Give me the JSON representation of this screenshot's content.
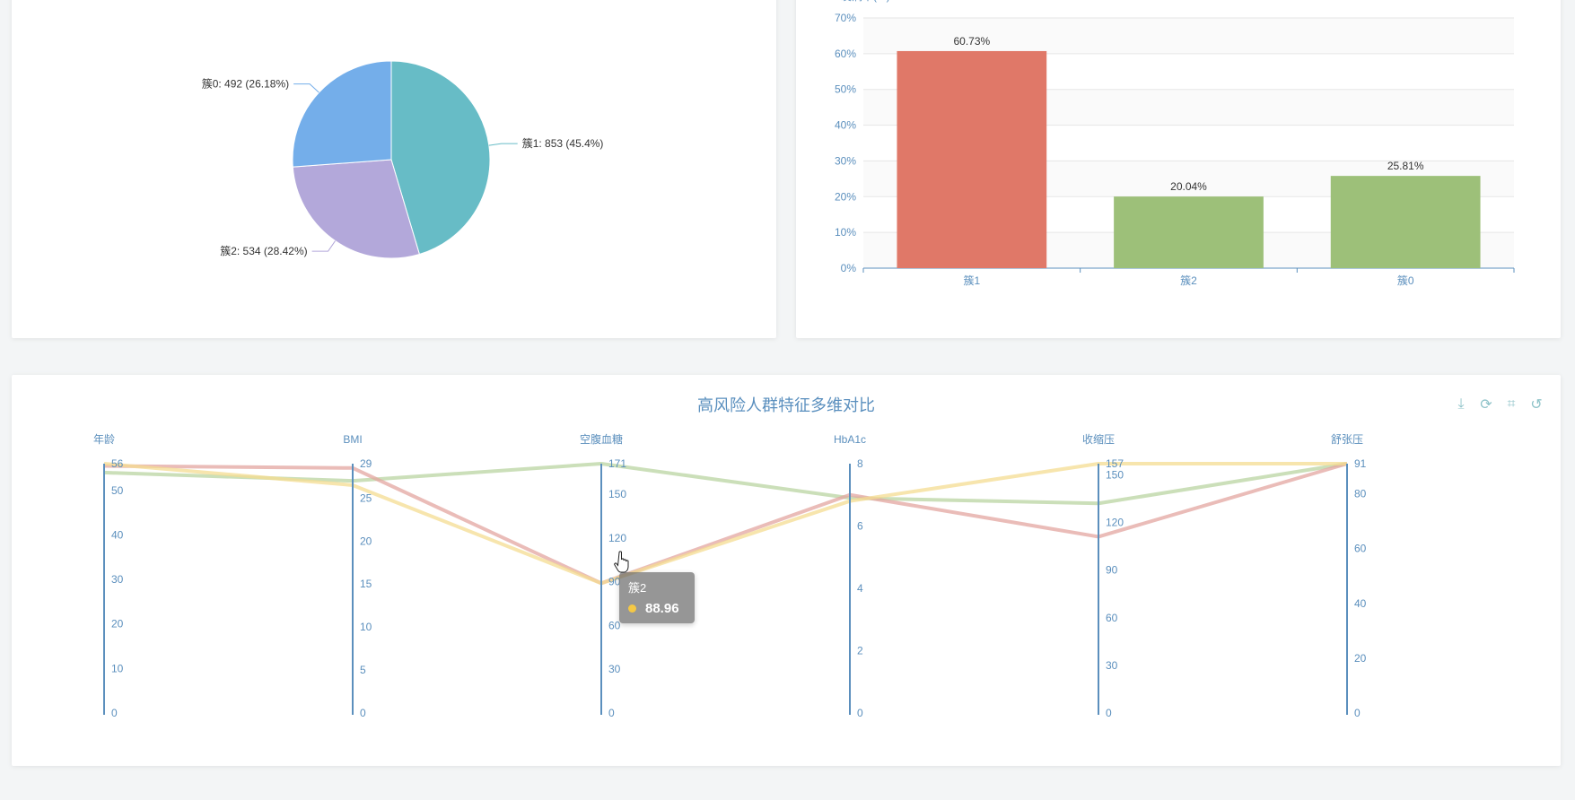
{
  "chart_data": [
    {
      "type": "pie",
      "title": "",
      "slices": [
        {
          "name": "簇1",
          "value": 853,
          "percent": "45.4%",
          "label": "簇1: 853 (45.4%)",
          "color": "#67bcc6"
        },
        {
          "name": "簇2",
          "value": 534,
          "percent": "28.42%",
          "label": "簇2: 534 (28.42%)",
          "color": "#b3a8da"
        },
        {
          "name": "簇0",
          "value": 492,
          "percent": "26.18%",
          "label": "簇0: 492 (26.18%)",
          "color": "#74aeea"
        }
      ]
    },
    {
      "type": "bar",
      "title": "",
      "ylabel": "发病率(%)",
      "ylim": [
        0,
        70
      ],
      "yticks": [
        "0%",
        "10%",
        "20%",
        "30%",
        "40%",
        "50%",
        "60%",
        "70%"
      ],
      "categories": [
        "簇1",
        "簇2",
        "簇0"
      ],
      "values": [
        60.73,
        20.04,
        25.81
      ],
      "labels": [
        "60.73%",
        "20.04%",
        "25.81%"
      ],
      "colors": [
        "#e07868",
        "#9dc079",
        "#9dc079"
      ]
    },
    {
      "type": "parallel",
      "title": "高风险人群特征多维对比",
      "axes": [
        {
          "name": "年龄",
          "min": 0,
          "max": 56,
          "ticks": [
            "0",
            "10",
            "20",
            "30",
            "40",
            "50",
            "56"
          ],
          "tickValues": [
            0,
            10,
            20,
            30,
            40,
            50,
            56
          ]
        },
        {
          "name": "BMI",
          "min": 0,
          "max": 29,
          "ticks": [
            "0",
            "5",
            "10",
            "15",
            "20",
            "25",
            "29"
          ],
          "tickValues": [
            0,
            5,
            10,
            15,
            20,
            25,
            29
          ]
        },
        {
          "name": "空腹血糖",
          "min": 0,
          "max": 171,
          "ticks": [
            "0",
            "30",
            "60",
            "90",
            "120",
            "150",
            "171"
          ],
          "tickValues": [
            0,
            30,
            60,
            90,
            120,
            150,
            171
          ]
        },
        {
          "name": "HbA1c",
          "min": 0,
          "max": 8,
          "ticks": [
            "0",
            "2",
            "4",
            "6",
            "8"
          ],
          "tickValues": [
            0,
            2,
            4,
            6,
            8
          ]
        },
        {
          "name": "收缩压",
          "min": 0,
          "max": 157,
          "ticks": [
            "0",
            "30",
            "60",
            "90",
            "120",
            "150",
            "157"
          ],
          "tickValues": [
            0,
            30,
            60,
            90,
            120,
            150,
            157
          ]
        },
        {
          "name": "舒张压",
          "min": 0,
          "max": 91,
          "ticks": [
            "0",
            "20",
            "40",
            "60",
            "80",
            "91"
          ],
          "tickValues": [
            0,
            20,
            40,
            60,
            80,
            91
          ]
        }
      ],
      "series": [
        {
          "name": "簇0",
          "color": "#b9d4a2",
          "values": [
            54,
            27,
            171,
            6.9,
            132,
            91
          ]
        },
        {
          "name": "簇1",
          "color": "#e3a6a0",
          "values": [
            55.5,
            28.5,
            89,
            7.0,
            111,
            91
          ]
        },
        {
          "name": "簇2",
          "color": "#f4dc92",
          "values": [
            56,
            26.5,
            88.96,
            6.8,
            157,
            91
          ]
        }
      ]
    }
  ],
  "toolbox": {
    "icons": [
      "download-icon",
      "refresh-icon",
      "crop-icon",
      "restore-icon"
    ],
    "glyphs": [
      "⤓",
      "⟳",
      "⌗",
      "↺"
    ]
  },
  "tooltip": {
    "series": "簇2",
    "value": "88.96",
    "dot_color": "#f4c845"
  },
  "colors": {
    "axis": "#5b8fbd",
    "axis_label": "#5b8fbd"
  }
}
